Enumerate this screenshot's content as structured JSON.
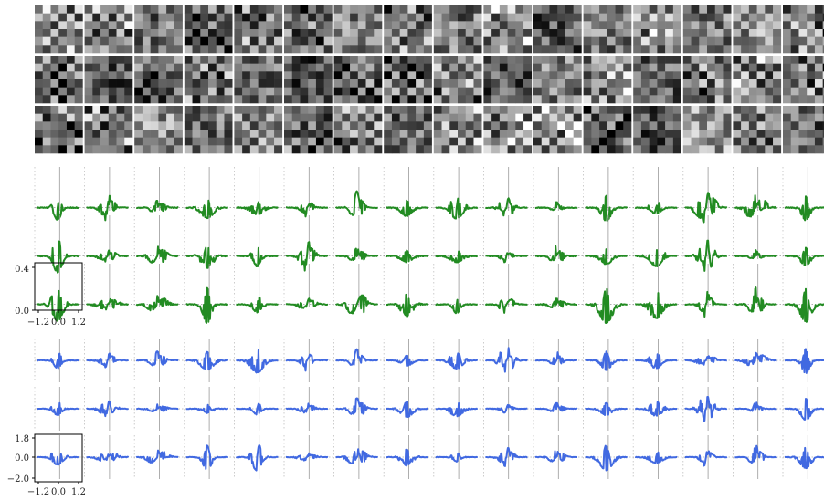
{
  "figure": {
    "panels": [
      "filter-grid",
      "green-waveforms",
      "blue-waveforms"
    ],
    "colors": {
      "green": "#228B22",
      "blue": "#4169E1",
      "background": "#ffffff",
      "grid": "#bfbfbf",
      "frame": "#000000",
      "zero_line": "#808080"
    }
  },
  "chart_data": [
    {
      "type": "heatmap",
      "rows": 3,
      "cols": 16,
      "cell_grid": 6,
      "colormap": "gray",
      "grid": false
    },
    {
      "type": "line",
      "rows": 3,
      "cols": 16,
      "color": "#228B22",
      "x_range": [
        -1.2,
        1.2
      ],
      "y_range": [
        -0.05,
        0.42
      ],
      "x_ticks": [
        "−1.2",
        "0.0",
        "1.2"
      ],
      "y_ticks": [
        "0.4",
        "0.0"
      ],
      "grid": true
    },
    {
      "type": "line",
      "rows": 3,
      "cols": 16,
      "color": "#4169E1",
      "x_range": [
        -1.2,
        1.2
      ],
      "y_range": [
        -2.1,
        2.1
      ],
      "x_ticks": [
        "−1.2",
        "0.0",
        "1.2"
      ],
      "y_ticks": [
        "1.8",
        "0.0",
        "−2.0"
      ],
      "grid": true
    }
  ]
}
